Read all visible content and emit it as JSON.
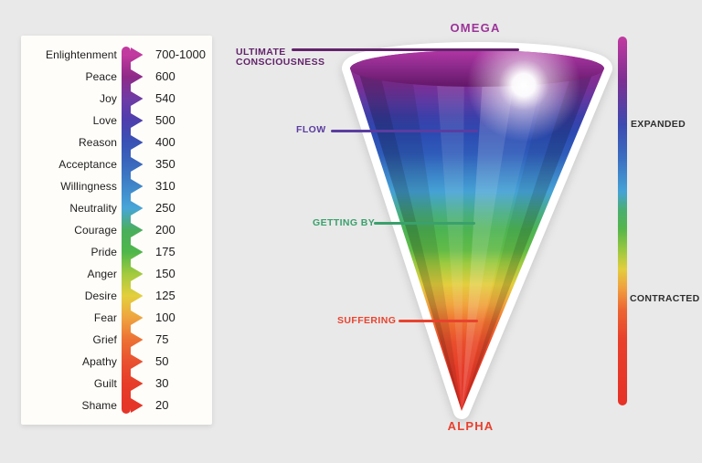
{
  "background_color": "#e9e9e9",
  "panel": {
    "bg_color": "#fffdf9",
    "rows": [
      {
        "label": "Enlightenment",
        "value": "700-1000",
        "color": "#c13aa0"
      },
      {
        "label": "Peace",
        "value": "600",
        "color": "#8f2a88"
      },
      {
        "label": "Joy",
        "value": "540",
        "color": "#6f3ba5"
      },
      {
        "label": "Love",
        "value": "500",
        "color": "#4d3ead"
      },
      {
        "label": "Reason",
        "value": "400",
        "color": "#3952b5"
      },
      {
        "label": "Acceptance",
        "value": "350",
        "color": "#3a68bd"
      },
      {
        "label": "Willingness",
        "value": "310",
        "color": "#3f86c9"
      },
      {
        "label": "Neutrality",
        "value": "250",
        "color": "#48a5d8"
      },
      {
        "label": "Courage",
        "value": "200",
        "color": "#4aae5c"
      },
      {
        "label": "Pride",
        "value": "175",
        "color": "#4eb74a"
      },
      {
        "label": "Anger",
        "value": "150",
        "color": "#a3ca3e"
      },
      {
        "label": "Desire",
        "value": "125",
        "color": "#e3cf3d"
      },
      {
        "label": "Fear",
        "value": "100",
        "color": "#eea43f"
      },
      {
        "label": "Grief",
        "value": "75",
        "color": "#ec7134"
      },
      {
        "label": "Apathy",
        "value": "50",
        "color": "#e95130"
      },
      {
        "label": "Guilt",
        "value": "30",
        "color": "#e63d29"
      },
      {
        "label": "Shame",
        "value": "20",
        "color": "#e53428"
      }
    ]
  },
  "cone": {
    "top_label": "OMEGA",
    "top_label_color": "#9c3399",
    "bottom_label": "ALPHA",
    "bottom_label_color": "#e8402e",
    "glow_icon": "light-orb",
    "gradient_stops": [
      [
        0,
        "#8e2d90"
      ],
      [
        0.05,
        "#7b2f96"
      ],
      [
        0.1,
        "#5a3aa4"
      ],
      [
        0.14,
        "#3c3fa9"
      ],
      [
        0.19,
        "#2c4ab2"
      ],
      [
        0.25,
        "#2f5cba"
      ],
      [
        0.3,
        "#3a7ec6"
      ],
      [
        0.36,
        "#45a2d5"
      ],
      [
        0.42,
        "#48ad86"
      ],
      [
        0.47,
        "#4cb353"
      ],
      [
        0.53,
        "#62bb47"
      ],
      [
        0.57,
        "#9eca3f"
      ],
      [
        0.63,
        "#e3ce3e"
      ],
      [
        0.69,
        "#f0a43e"
      ],
      [
        0.74,
        "#ee7030"
      ],
      [
        0.8,
        "#e94e2c"
      ],
      [
        0.88,
        "#e63b28"
      ],
      [
        1,
        "#e22f25"
      ]
    ],
    "rim_gradient": [
      [
        0,
        "#b135a4"
      ],
      [
        0.45,
        "#8c2a8c"
      ],
      [
        1,
        "#621768"
      ]
    ],
    "annotations": [
      {
        "label": "ULTIMATE CONSCIOUSNESS",
        "color": "#63246b"
      },
      {
        "label": "FLOW",
        "color": "#5b3da0"
      },
      {
        "label": "GETTING BY",
        "color": "#3aa06c"
      },
      {
        "label": "SUFFERING",
        "color": "#e8432e"
      }
    ]
  },
  "spectrum_bar": {
    "top_label": "EXPANDED",
    "bottom_label": "CONTRACTED",
    "label_color": "#2f2f2f",
    "stops": [
      [
        0,
        "#c23aa1"
      ],
      [
        0.12,
        "#7c2f92"
      ],
      [
        0.24,
        "#3c4ab0"
      ],
      [
        0.33,
        "#3b6ec1"
      ],
      [
        0.42,
        "#45a2d6"
      ],
      [
        0.47,
        "#4aae71"
      ],
      [
        0.52,
        "#53b54a"
      ],
      [
        0.58,
        "#9cc83f"
      ],
      [
        0.63,
        "#e2ce3e"
      ],
      [
        0.68,
        "#f0a23f"
      ],
      [
        0.74,
        "#ed6632"
      ],
      [
        0.82,
        "#e8402b"
      ],
      [
        1,
        "#e63127"
      ]
    ]
  }
}
